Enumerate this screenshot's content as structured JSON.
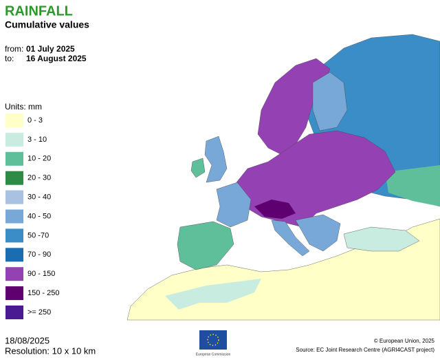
{
  "header": {
    "title": "RAINFALL",
    "subtitle": "Cumulative values",
    "from_label": "from:",
    "from_date": "01 July 2025",
    "to_label": "to:",
    "to_date": "16 August 2025"
  },
  "legend": {
    "title": "Units: mm",
    "items": [
      {
        "label": "0 - 3",
        "color": "#ffffc8"
      },
      {
        "label": "3 - 10",
        "color": "#c9ece0"
      },
      {
        "label": "10 - 20",
        "color": "#5fbf9a"
      },
      {
        "label": "20 - 30",
        "color": "#2e8b45"
      },
      {
        "label": "30 - 40",
        "color": "#a9c2e2"
      },
      {
        "label": "40 - 50",
        "color": "#78a8d8"
      },
      {
        "label": "50 -70",
        "color": "#3b8dc8"
      },
      {
        "label": "70 - 90",
        "color": "#1a6db0"
      },
      {
        "label": "90 - 150",
        "color": "#9441b4"
      },
      {
        "label": "150 - 250",
        "color": "#5e0070"
      },
      {
        "label": ">= 250",
        "color": "#4a1a92"
      }
    ]
  },
  "footer": {
    "date": "18/08/2025",
    "resolution": "Resolution: 10 x 10 km",
    "logo_text": "European Commission",
    "copyright": "© European Union, 2025",
    "source": "Source: EC Joint Research Centre (AGRI4CAST project)"
  }
}
